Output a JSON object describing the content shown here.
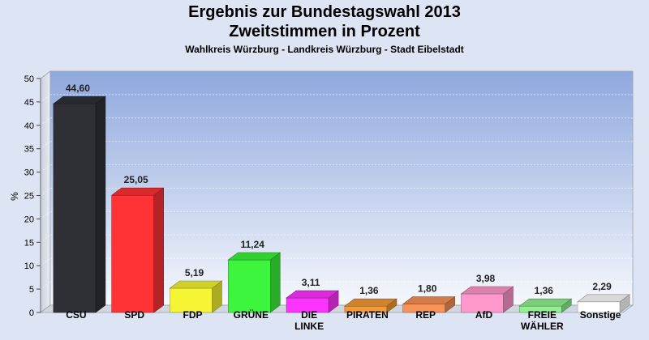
{
  "chart_data": {
    "type": "bar",
    "title": "Ergebnis zur Bundestagswahl 2013",
    "subtitle": "Zweitstimmen in Prozent",
    "caption": "Wahlkreis Würzburg - Landkreis Würzburg - Stadt Eibelstadt",
    "ylabel": "%",
    "ylim": [
      0,
      50
    ],
    "yticks": [
      0,
      5,
      10,
      15,
      20,
      25,
      30,
      35,
      40,
      45,
      50
    ],
    "grid": true,
    "categories": [
      [
        "CSU"
      ],
      [
        "SPD"
      ],
      [
        "FDP"
      ],
      [
        "GRÜNE"
      ],
      [
        "DIE",
        "LINKE"
      ],
      [
        "PIRATEN"
      ],
      [
        "REP"
      ],
      [
        "AfD"
      ],
      [
        "FREIE",
        "WÄHLER"
      ],
      [
        "Sonstige"
      ]
    ],
    "values": [
      44.6,
      25.05,
      5.19,
      11.24,
      3.11,
      1.36,
      1.8,
      3.98,
      1.36,
      2.29
    ],
    "value_labels": [
      "44,60",
      "25,05",
      "5,19",
      "11,24",
      "3,11",
      "1,36",
      "1,80",
      "3,98",
      "1,36",
      "2,29"
    ],
    "colors": [
      "#2f3036",
      "#ff3336",
      "#f5f534",
      "#3cf53c",
      "#ff33ff",
      "#f59a36",
      "#f79258",
      "#ff99cc",
      "#8ff28f",
      "#ffffff"
    ]
  }
}
